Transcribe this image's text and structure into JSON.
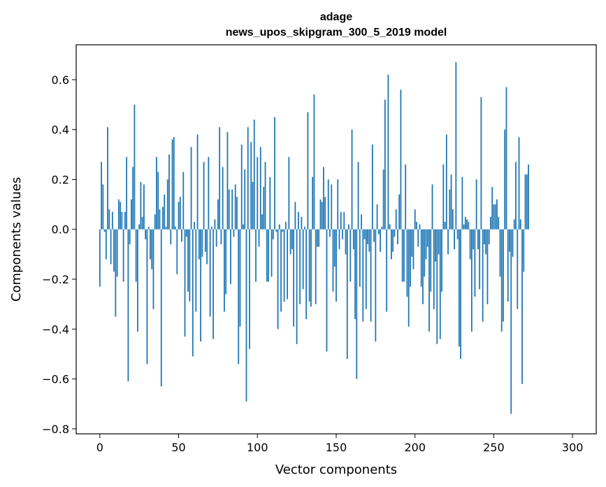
{
  "chart_data": {
    "type": "bar",
    "title": "adage",
    "subtitle": "news_upos_skipgram_300_5_2019 model",
    "xlabel": "Vector components",
    "ylabel": "Components values",
    "xlim": [
      -15,
      315
    ],
    "ylim": [
      -0.82,
      0.74
    ],
    "xticks": [
      0,
      50,
      100,
      150,
      200,
      250,
      300
    ],
    "xtick_labels": [
      "0",
      "50",
      "100",
      "150",
      "200",
      "250",
      "300"
    ],
    "yticks": [
      0.6,
      0.4,
      0.2,
      0.0,
      -0.2,
      -0.4,
      -0.6,
      -0.8
    ],
    "ytick_labels": [
      "0.6",
      "0.4",
      "0.2",
      "0.0",
      "−0.2",
      "−0.4",
      "−0.6",
      "−0.8"
    ],
    "grid": false,
    "bar_color": "#1f77b4",
    "values": [
      -0.23,
      0.27,
      0.18,
      -0.01,
      -0.12,
      0.41,
      0.08,
      -0.14,
      0.07,
      -0.17,
      -0.35,
      -0.19,
      0.12,
      0.11,
      0.07,
      -0.21,
      0.07,
      0.29,
      -0.61,
      -0.06,
      0.12,
      0.25,
      0.5,
      -0.21,
      -0.41,
      0.02,
      0.19,
      0.05,
      0.18,
      -0.04,
      -0.54,
      0.01,
      -0.12,
      -0.16,
      -0.32,
      0.06,
      0.29,
      0.23,
      0.08,
      -0.63,
      0.09,
      0.14,
      0.01,
      0.2,
      0.3,
      -0.06,
      0.36,
      0.37,
      0.01,
      -0.18,
      0.11,
      0.13,
      -0.05,
      0.23,
      -0.43,
      -0.03,
      -0.25,
      -0.29,
      0.33,
      -0.51,
      0.03,
      -0.33,
      0.38,
      -0.12,
      -0.45,
      -0.11,
      0.27,
      -0.09,
      -0.14,
      0.29,
      -0.35,
      0.01,
      -0.44,
      0.04,
      -0.07,
      0.12,
      0.41,
      -0.06,
      0.25,
      -0.33,
      -0.26,
      0.39,
      0.16,
      -0.22,
      0.16,
      -0.03,
      0.18,
      0.13,
      -0.54,
      -0.39,
      0.34,
      0.02,
      0.24,
      -0.69,
      0.41,
      -0.48,
      0.35,
      0.19,
      0.44,
      -0.21,
      0.29,
      -0.07,
      0.33,
      0.06,
      0.17,
      0.27,
      -0.21,
      -0.21,
      0.21,
      -0.19,
      -0.04,
      0.45,
      -0.01,
      -0.4,
      0.02,
      -0.33,
      -0.01,
      -0.29,
      0.03,
      -0.28,
      0.29,
      -0.1,
      -0.08,
      -0.39,
      0.11,
      -0.46,
      0.07,
      -0.3,
      0.05,
      -0.24,
      0.01,
      -0.36,
      0.47,
      -0.29,
      -0.31,
      0.21,
      0.54,
      -0.3,
      -0.07,
      -0.07,
      0.12,
      0.11,
      0.25,
      0.13,
      -0.49,
      0.2,
      -0.03,
      0.18,
      -0.25,
      -0.15,
      -0.29,
      0.2,
      -0.08,
      0.07,
      -0.04,
      0.07,
      -0.1,
      -0.52,
      0.02,
      -0.21,
      0.4,
      -0.08,
      -0.36,
      -0.6,
      0.27,
      -0.23,
      0.06,
      -0.37,
      -0.04,
      -0.32,
      -0.06,
      -0.09,
      -0.37,
      0.34,
      -0.05,
      -0.45,
      0.1,
      -0.02,
      -0.09,
      0.01,
      0.24,
      0.52,
      -0.33,
      0.62,
      0.02,
      -0.12,
      -0.09,
      -0.03,
      0.08,
      -0.06,
      0.14,
      0.56,
      -0.21,
      -0.21,
      0.26,
      -0.27,
      -0.39,
      -0.23,
      -0.11,
      -0.16,
      0.08,
      0.03,
      -0.07,
      0.02,
      -0.23,
      -0.3,
      -0.19,
      -0.12,
      -0.07,
      -0.41,
      -0.25,
      0.18,
      -0.32,
      -0.13,
      -0.46,
      -0.1,
      -0.44,
      -0.25,
      0.26,
      0.03,
      0.38,
      -0.1,
      0.16,
      0.22,
      0.08,
      -0.08,
      0.67,
      -0.04,
      -0.47,
      -0.52,
      0.21,
      0.02,
      0.05,
      0.04,
      0.03,
      -0.12,
      -0.41,
      -0.08,
      -0.27,
      0.2,
      -0.08,
      -0.24,
      0.53,
      -0.37,
      -0.06,
      -0.1,
      -0.3,
      -0.06,
      0.05,
      0.17,
      0.1,
      0.1,
      0.12,
      0.05,
      -0.19,
      -0.41,
      -0.37,
      0.4,
      0.57,
      -0.29,
      -0.09,
      -0.74,
      -0.11,
      0.04,
      0.27,
      -0.32,
      0.37,
      0.04,
      -0.62,
      -0.17,
      0.22,
      0.22,
      0.26
    ]
  }
}
